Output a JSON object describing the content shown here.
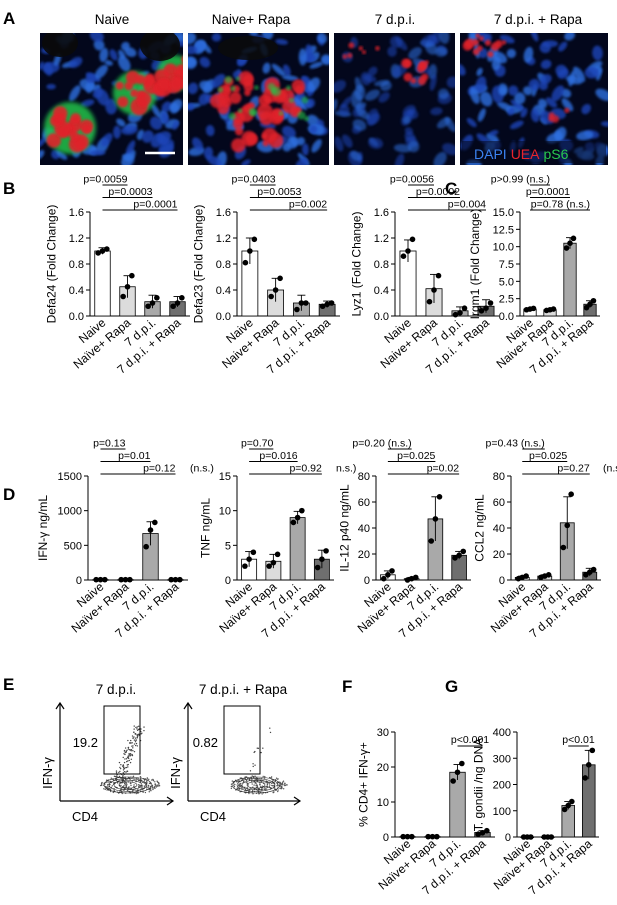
{
  "colors": {
    "dapi": "#2f6fe0",
    "uea": "#e0202a",
    "ps6": "#24c24a",
    "bar_white": "#ffffff",
    "bar_light": "#dcdcdc",
    "bar_mid": "#a9a9a9",
    "bar_dark": "#6f6f6f"
  },
  "panel_A": {
    "letter": "A",
    "images": [
      {
        "label": "Naive"
      },
      {
        "label": "Naive+ Rapa"
      },
      {
        "label": "7 d.p.i."
      },
      {
        "label": "7 d.p.i. + Rapa"
      }
    ],
    "legend": {
      "dapi": "DAPI",
      "uea": "UEA",
      "ps6": "pS6"
    }
  },
  "chart_data": [
    {
      "id": "defa24",
      "panel": "B",
      "type": "bar",
      "categories": [
        "Naive",
        "Naïve+ Rapa",
        "7 d.p.i.",
        "7 d.p.i. + Rapa"
      ],
      "values": [
        1.0,
        0.45,
        0.22,
        0.22
      ],
      "errors": [
        0.05,
        0.17,
        0.1,
        0.08
      ],
      "points": [
        [
          0.97,
          1.0,
          1.03
        ],
        [
          0.3,
          0.45,
          0.62
        ],
        [
          0.15,
          0.2,
          0.28
        ],
        [
          0.15,
          0.2,
          0.28
        ]
      ],
      "ylabel": "Defa24 (Fold Change)",
      "ylim": [
        0,
        1.6
      ],
      "yticks": [
        "0.0",
        "0.4",
        "0.8",
        "1.2",
        "1.6"
      ],
      "pvalues": [
        "p=0.0059",
        "p=0.0003",
        "p=0.0001"
      ]
    },
    {
      "id": "defa23",
      "panel": "",
      "type": "bar",
      "categories": [
        "Naive",
        "Naive+ Rapa",
        "7 d.p.i.",
        "7 d.p.i. + Rapa"
      ],
      "values": [
        1.0,
        0.4,
        0.2,
        0.18
      ],
      "errors": [
        0.2,
        0.18,
        0.12,
        0.05
      ],
      "points": [
        [
          0.82,
          1.0,
          1.18
        ],
        [
          0.3,
          0.4,
          0.58
        ],
        [
          0.1,
          0.2,
          0.2
        ],
        [
          0.15,
          0.18,
          0.2
        ]
      ],
      "ylabel": "Defa23 (Fold Change)",
      "ylim": [
        0,
        1.6
      ],
      "yticks": [
        "0.0",
        "0.4",
        "0.8",
        "1.2",
        "1.6"
      ],
      "pvalues": [
        "p=0.0403",
        "p=0.0053",
        "p=0.002"
      ]
    },
    {
      "id": "lyz1",
      "panel": "",
      "type": "bar",
      "categories": [
        "Naive",
        "Naive+ Rapa",
        "7 d.p.i.",
        "7 d.p.i. + Rapa"
      ],
      "values": [
        1.0,
        0.42,
        0.08,
        0.15
      ],
      "errors": [
        0.17,
        0.22,
        0.06,
        0.1
      ],
      "points": [
        [
          0.92,
          1.0,
          1.18
        ],
        [
          0.22,
          0.4,
          0.62
        ],
        [
          0.02,
          0.05,
          0.12
        ],
        [
          0.08,
          0.12,
          0.2
        ]
      ],
      "ylabel": "Lyz1 (Fold Change)",
      "ylim": [
        0,
        1.6
      ],
      "yticks": [
        "0.0",
        "0.4",
        "0.8",
        "1.2",
        "1.6"
      ],
      "pvalues": [
        "p=0.0056",
        "p=0.0002",
        "p=0.004"
      ]
    },
    {
      "id": "irgm1",
      "panel": "C",
      "type": "bar",
      "categories": [
        "Naive",
        "Naive+ Rapa",
        "7 d.p.i.",
        "7 d.p.i. + Rapa"
      ],
      "values": [
        1.0,
        0.9,
        10.5,
        1.7
      ],
      "errors": [
        0.15,
        0.15,
        0.8,
        0.5
      ],
      "points": [
        [
          0.9,
          1.0,
          1.1
        ],
        [
          0.8,
          0.9,
          1.0
        ],
        [
          9.8,
          10.5,
          11.2
        ],
        [
          1.2,
          1.7,
          2.2
        ]
      ],
      "ylabel": "Irgm1 (Fold Change)",
      "ylim": [
        0,
        15
      ],
      "yticks": [
        "0.0",
        "2.5",
        "5.0",
        "7.5",
        "10.0",
        "12.5",
        "15.0"
      ],
      "pvalues": [
        "p>0.99 (n.s.)",
        "p=0.0001",
        "p=0.78 (n.s.)"
      ]
    },
    {
      "id": "ifng",
      "panel": "D",
      "type": "bar",
      "categories": [
        "Naive",
        "Naïve+ Rapa",
        "7 d.p.i.",
        "7 d.p.i. + Rapa"
      ],
      "values": [
        5,
        5,
        670,
        5
      ],
      "errors": [
        0,
        0,
        170,
        0
      ],
      "points": [
        [
          5,
          5,
          5
        ],
        [
          5,
          5,
          5
        ],
        [
          480,
          720,
          830
        ],
        [
          5,
          5,
          5
        ]
      ],
      "ylabel": "IFN-γ ng/mL",
      "ylim": [
        0,
        1500
      ],
      "yticks": [
        "0",
        "500",
        "1000",
        "1500"
      ],
      "pvalues": [
        "p=0.13",
        "p=0.01",
        "p=0.12"
      ],
      "ns_text": "(n.s.)"
    },
    {
      "id": "tnf",
      "panel": "",
      "type": "bar",
      "categories": [
        "Naive",
        "Naïve+ Rapa",
        "7 d.p.i.",
        "7 d.p.i. + Rapa"
      ],
      "values": [
        3.0,
        2.7,
        9.0,
        3.0
      ],
      "errors": [
        1.1,
        1.0,
        0.9,
        1.3
      ],
      "points": [
        [
          2.0,
          3.0,
          4.0
        ],
        [
          2.0,
          2.5,
          3.7
        ],
        [
          8.3,
          9.0,
          10.0
        ],
        [
          1.8,
          3.0,
          4.2
        ]
      ],
      "ylabel": "TNF ng/mL",
      "ylim": [
        0,
        15
      ],
      "yticks": [
        "0",
        "5",
        "10",
        "15"
      ],
      "pvalues": [
        "p=0.70",
        "p=0.016",
        "p=0.92"
      ],
      "ns_text": "n.s.)"
    },
    {
      "id": "il12",
      "panel": "",
      "type": "bar",
      "categories": [
        "Naive",
        "Naïve+ Rapa",
        "7 d.p.i.",
        "7 d.p.i. + Rapa"
      ],
      "values": [
        4,
        1,
        47,
        19
      ],
      "errors": [
        3,
        1,
        17,
        3
      ],
      "points": [
        [
          1,
          4,
          7
        ],
        [
          0,
          1,
          2
        ],
        [
          30,
          47,
          64
        ],
        [
          17,
          19,
          22
        ]
      ],
      "ylabel": "IL-12 p40 ng/mL",
      "ylim": [
        0,
        80
      ],
      "yticks": [
        "0",
        "20",
        "40",
        "60",
        "80"
      ],
      "pvalues": [
        "p=0.20 (n.s.)",
        "p=0.025",
        "p=0.02"
      ]
    },
    {
      "id": "ccl2",
      "panel": "",
      "type": "bar",
      "categories": [
        "Naive",
        "Naïve+ Rapa",
        "7 d.p.i.",
        "7 d.p.i. + Rapa"
      ],
      "values": [
        2,
        3,
        44,
        6
      ],
      "errors": [
        1,
        1,
        20,
        3
      ],
      "points": [
        [
          1,
          2,
          3
        ],
        [
          2,
          3,
          4
        ],
        [
          25,
          42,
          66
        ],
        [
          4,
          6,
          8
        ]
      ],
      "ylabel": "CCL2 ng/mL",
      "ylim": [
        0,
        80
      ],
      "yticks": [
        "0",
        "20",
        "40",
        "60",
        "80"
      ],
      "pvalues": [
        "p=0.43 (n.s.)",
        "p=0.025",
        "p=0.27"
      ],
      "ns_text": "(n.s.)"
    },
    {
      "id": "cd4ifng",
      "panel": "F",
      "type": "bar",
      "categories": [
        "Naive",
        "Naïve+ Rapa",
        "7 d.p.i.",
        "7 d.p.i. + Rapa"
      ],
      "values": [
        0.1,
        0.1,
        18.5,
        1.3
      ],
      "errors": [
        0,
        0,
        2.2,
        0.5
      ],
      "points": [
        [
          0.1,
          0.1,
          0.1
        ],
        [
          0.1,
          0.1,
          0.1
        ],
        [
          16.0,
          18.5,
          21.0
        ],
        [
          0.8,
          1.2,
          1.8
        ]
      ],
      "ylabel": "% CD4+ IFN-γ+",
      "ylim": [
        0,
        30
      ],
      "yticks": [
        "0",
        "10",
        "20",
        "30"
      ],
      "pvalues": [
        "p<0.001"
      ]
    },
    {
      "id": "tgondii",
      "panel": "G",
      "type": "bar",
      "categories": [
        "Naive",
        "Naïve+ Rapa",
        "7 d.p.i.",
        "7 d.p.i. + Rapa"
      ],
      "values": [
        0,
        0,
        120,
        275
      ],
      "errors": [
        0,
        0,
        15,
        55
      ],
      "points": [
        [
          0,
          0,
          0
        ],
        [
          0,
          0,
          0
        ],
        [
          105,
          120,
          135
        ],
        [
          225,
          275,
          330
        ]
      ],
      "ylabel": "T. gondii /ng DNA",
      "ylim": [
        0,
        400
      ],
      "yticks": [
        "0",
        "100",
        "200",
        "300",
        "400"
      ],
      "pvalues": [
        "p<0.01"
      ]
    }
  ],
  "panel_E": {
    "letter": "E",
    "plots": [
      {
        "title": "7 d.p.i.",
        "gate_value": "19.2",
        "xlabel": "CD4",
        "ylabel": "IFN-γ"
      },
      {
        "title": "7 d.p.i. + Rapa",
        "gate_value": "0.82",
        "xlabel": "CD4",
        "ylabel": "IFN-γ"
      }
    ]
  }
}
